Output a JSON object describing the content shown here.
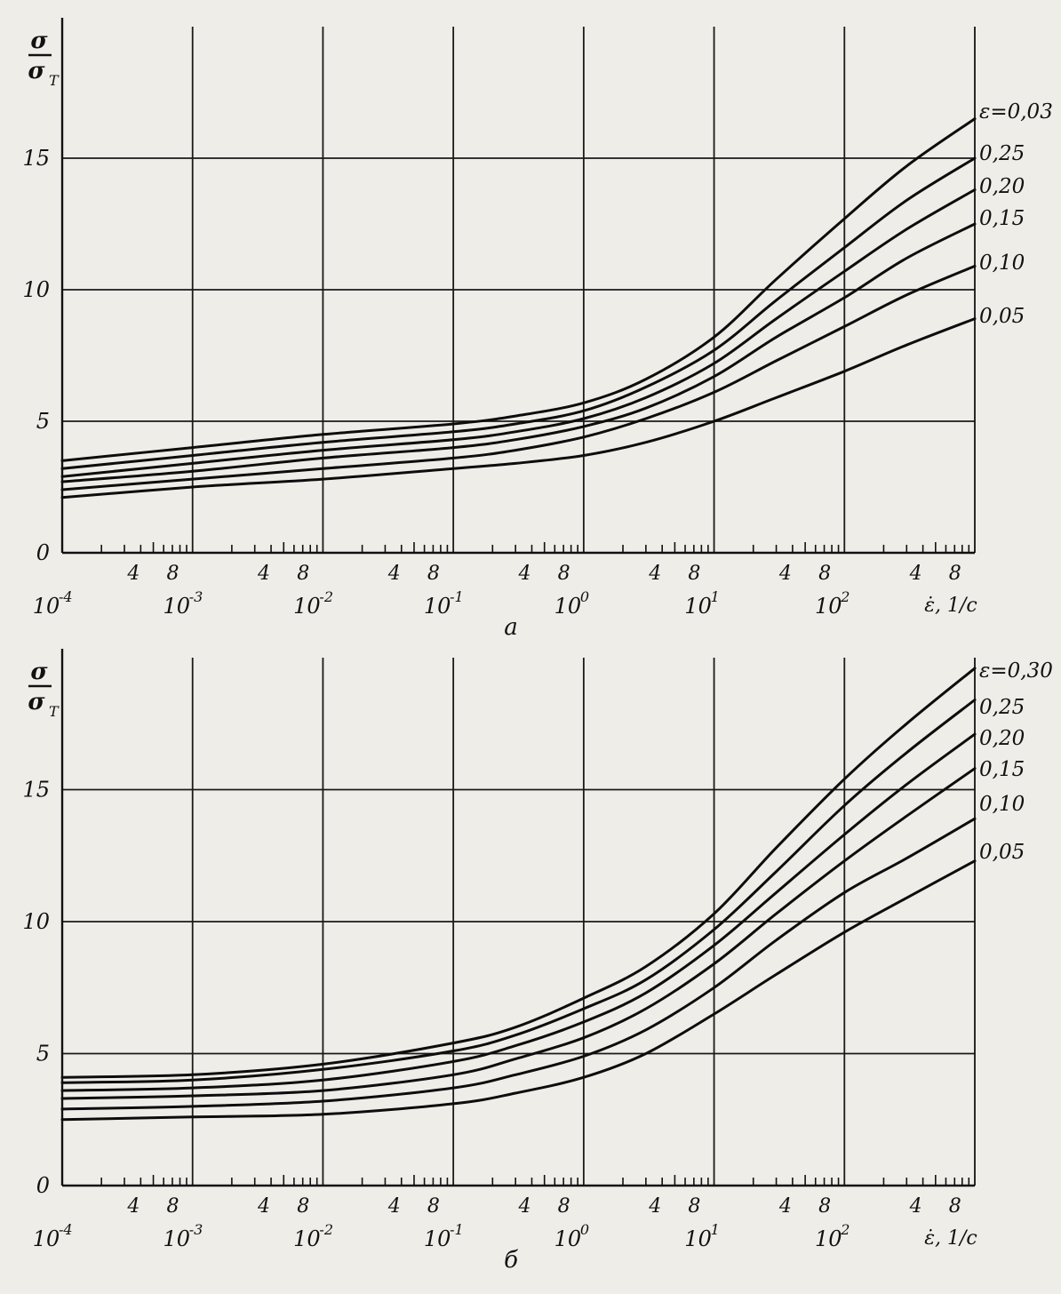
{
  "chart_data": [
    {
      "type": "line",
      "panel_label": "а",
      "ylabel_num": "σ",
      "ylabel_den": "σ",
      "ylabel_den_sub": "T",
      "xlabel": "ε̇, 1/c",
      "x_scale": "log",
      "xlim": [
        0.0001,
        1000
      ],
      "ylim": [
        0,
        20
      ],
      "grid": true,
      "x_major_ticks": [
        {
          "value": 0.0001,
          "base": "10",
          "exp": "-4"
        },
        {
          "value": 0.001,
          "base": "10",
          "exp": "-3"
        },
        {
          "value": 0.01,
          "base": "10",
          "exp": "-2"
        },
        {
          "value": 0.1,
          "base": "10",
          "exp": "-1"
        },
        {
          "value": 1,
          "base": "10",
          "exp": "0"
        },
        {
          "value": 10,
          "base": "10",
          "exp": "1"
        },
        {
          "value": 100,
          "base": "10",
          "exp": "2"
        }
      ],
      "x_minor_labels": [
        "4",
        "8"
      ],
      "y_ticks": [
        "0",
        "5",
        "10",
        "15"
      ],
      "y_tick_values": [
        0,
        5,
        10,
        15
      ],
      "x_sample_points": [
        0.0001,
        0.001,
        0.01,
        0.1,
        0.3,
        1,
        3,
        10,
        30,
        100,
        300,
        1000
      ],
      "series": [
        {
          "name": "ε=0,03",
          "values": [
            3.5,
            4.0,
            4.5,
            4.9,
            5.2,
            5.7,
            6.6,
            8.2,
            10.4,
            12.7,
            14.7,
            16.5
          ]
        },
        {
          "name": "0,25",
          "values": [
            3.2,
            3.7,
            4.2,
            4.6,
            4.9,
            5.4,
            6.3,
            7.7,
            9.6,
            11.6,
            13.4,
            15.0
          ]
        },
        {
          "name": "0,20",
          "values": [
            2.9,
            3.4,
            3.9,
            4.3,
            4.6,
            5.1,
            5.9,
            7.2,
            8.9,
            10.7,
            12.3,
            13.8
          ]
        },
        {
          "name": "0,15",
          "values": [
            2.7,
            3.1,
            3.6,
            4.0,
            4.3,
            4.8,
            5.5,
            6.7,
            8.2,
            9.7,
            11.2,
            12.5
          ]
        },
        {
          "name": "0,10",
          "values": [
            2.4,
            2.8,
            3.2,
            3.6,
            3.9,
            4.4,
            5.1,
            6.1,
            7.3,
            8.6,
            9.8,
            10.9
          ]
        },
        {
          "name": "0,05",
          "values": [
            2.1,
            2.5,
            2.8,
            3.2,
            3.4,
            3.7,
            4.2,
            5.0,
            5.9,
            6.9,
            7.9,
            8.9
          ]
        }
      ]
    },
    {
      "type": "line",
      "panel_label": "б",
      "ylabel_num": "σ",
      "ylabel_den": "σ",
      "ylabel_den_sub": "T",
      "xlabel": "ε̇, 1/c",
      "x_scale": "log",
      "xlim": [
        0.0001,
        1000
      ],
      "ylim": [
        0,
        20
      ],
      "grid": true,
      "x_major_ticks": [
        {
          "value": 0.0001,
          "base": "10",
          "exp": "-4"
        },
        {
          "value": 0.001,
          "base": "10",
          "exp": "-3"
        },
        {
          "value": 0.01,
          "base": "10",
          "exp": "-2"
        },
        {
          "value": 0.1,
          "base": "10",
          "exp": "-1"
        },
        {
          "value": 1,
          "base": "10",
          "exp": "0"
        },
        {
          "value": 10,
          "base": "10",
          "exp": "1"
        },
        {
          "value": 100,
          "base": "10",
          "exp": "2"
        }
      ],
      "x_minor_labels": [
        "4",
        "8"
      ],
      "y_ticks": [
        "0",
        "5",
        "10",
        "15"
      ],
      "y_tick_values": [
        0,
        5,
        10,
        15
      ],
      "x_sample_points": [
        0.0001,
        0.001,
        0.01,
        0.1,
        0.3,
        1,
        3,
        10,
        30,
        100,
        300,
        1000
      ],
      "series": [
        {
          "name": "ε=0,30",
          "values": [
            4.1,
            4.2,
            4.6,
            5.4,
            6.0,
            7.1,
            8.3,
            10.3,
            12.8,
            15.4,
            17.5,
            19.6
          ]
        },
        {
          "name": "0,25",
          "values": [
            3.9,
            4.0,
            4.4,
            5.1,
            5.7,
            6.7,
            7.8,
            9.7,
            11.9,
            14.4,
            16.4,
            18.4
          ]
        },
        {
          "name": "0,20",
          "values": [
            3.6,
            3.7,
            4.0,
            4.7,
            5.3,
            6.2,
            7.3,
            9.1,
            11.1,
            13.3,
            15.2,
            17.1
          ]
        },
        {
          "name": "0,15",
          "values": [
            3.3,
            3.4,
            3.6,
            4.2,
            4.8,
            5.6,
            6.7,
            8.4,
            10.3,
            12.3,
            14.0,
            15.8
          ]
        },
        {
          "name": "0,10",
          "values": [
            2.9,
            3.0,
            3.2,
            3.7,
            4.2,
            4.9,
            5.9,
            7.5,
            9.3,
            11.1,
            12.4,
            13.9
          ]
        },
        {
          "name": "0,05",
          "values": [
            2.5,
            2.6,
            2.7,
            3.1,
            3.5,
            4.1,
            5.0,
            6.5,
            8.0,
            9.6,
            10.9,
            12.3
          ]
        }
      ]
    }
  ]
}
